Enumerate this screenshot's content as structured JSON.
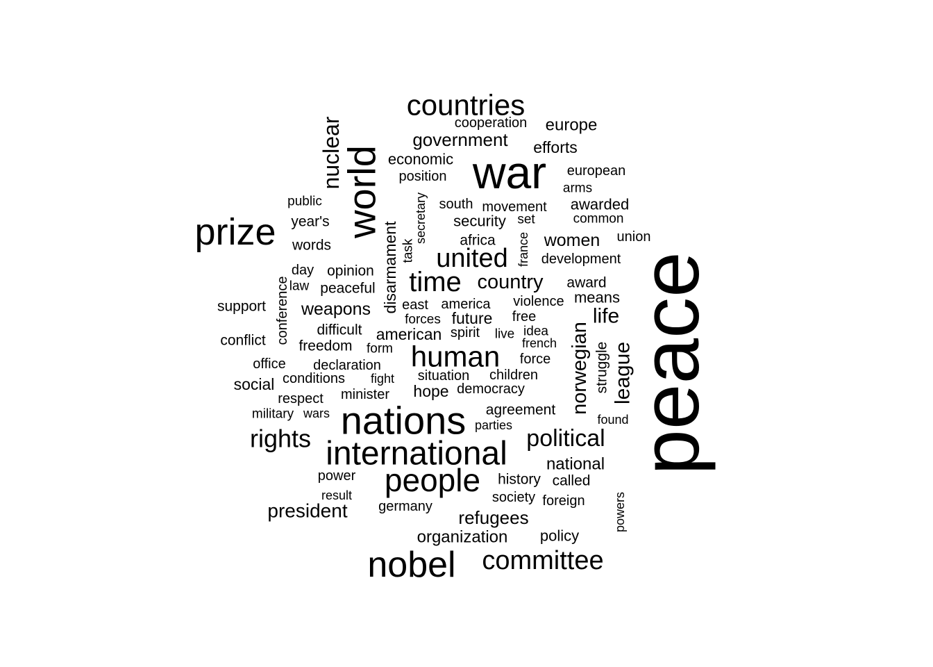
{
  "words": [
    {
      "text": "peace",
      "weight": 100,
      "rotated": true
    },
    {
      "text": "war",
      "weight": 56
    },
    {
      "text": "nations",
      "weight": 52
    },
    {
      "text": "world",
      "weight": 50,
      "rotated": true
    },
    {
      "text": "prize",
      "weight": 48
    },
    {
      "text": "international",
      "weight": 44
    },
    {
      "text": "people",
      "weight": 40
    },
    {
      "text": "nobel",
      "weight": 40
    },
    {
      "text": "countries",
      "weight": 34
    },
    {
      "text": "human",
      "weight": 34
    },
    {
      "text": "committee",
      "weight": 32
    },
    {
      "text": "time",
      "weight": 32
    },
    {
      "text": "united",
      "weight": 30
    },
    {
      "text": "rights",
      "weight": 30
    },
    {
      "text": "political",
      "weight": 28
    },
    {
      "text": "nuclear",
      "weight": 26,
      "rotated": true
    },
    {
      "text": "country",
      "weight": 25
    },
    {
      "text": "president",
      "weight": 24
    },
    {
      "text": "refugees",
      "weight": 23
    },
    {
      "text": "government",
      "weight": 23
    },
    {
      "text": "league",
      "weight": 24,
      "rotated": true
    },
    {
      "text": "norwegian",
      "weight": 24,
      "rotated": true
    },
    {
      "text": "life",
      "weight": 25
    },
    {
      "text": "disarmament",
      "weight": 20,
      "rotated": true
    },
    {
      "text": "women",
      "weight": 21
    },
    {
      "text": "weapons",
      "weight": 21
    },
    {
      "text": "national",
      "weight": 20
    },
    {
      "text": "organization",
      "weight": 20
    },
    {
      "text": "europe",
      "weight": 20
    },
    {
      "text": "american",
      "weight": 20
    },
    {
      "text": "economic",
      "weight": 19
    },
    {
      "text": "future",
      "weight": 19
    },
    {
      "text": "hope",
      "weight": 19
    },
    {
      "text": "social",
      "weight": 19
    },
    {
      "text": "efforts",
      "weight": 19
    },
    {
      "text": "security",
      "weight": 18
    },
    {
      "text": "awarded",
      "weight": 18
    },
    {
      "text": "means",
      "weight": 18
    },
    {
      "text": "policy",
      "weight": 18
    },
    {
      "text": "history",
      "weight": 17
    },
    {
      "text": "agreement",
      "weight": 17
    },
    {
      "text": "award",
      "weight": 17
    },
    {
      "text": "conflict",
      "weight": 17
    },
    {
      "text": "freedom",
      "weight": 17
    },
    {
      "text": "struggle",
      "weight": 17,
      "rotated": true
    },
    {
      "text": "words",
      "weight": 16
    },
    {
      "text": "africa",
      "weight": 16
    },
    {
      "text": "year's",
      "weight": 16
    },
    {
      "text": "peaceful",
      "weight": 16
    },
    {
      "text": "called",
      "weight": 16
    },
    {
      "text": "opinion",
      "weight": 16
    },
    {
      "text": "support",
      "weight": 16
    },
    {
      "text": "difficult",
      "weight": 16
    },
    {
      "text": "violence",
      "weight": 15
    },
    {
      "text": "position",
      "weight": 15
    },
    {
      "text": "south",
      "weight": 15
    },
    {
      "text": "development",
      "weight": 15
    },
    {
      "text": "america",
      "weight": 15
    },
    {
      "text": "east",
      "weight": 15
    },
    {
      "text": "union",
      "weight": 15
    },
    {
      "text": "european",
      "weight": 15
    },
    {
      "text": "cooperation",
      "weight": 15
    },
    {
      "text": "movement",
      "weight": 15
    },
    {
      "text": "office",
      "weight": 15
    },
    {
      "text": "spirit",
      "weight": 15
    },
    {
      "text": "situation",
      "weight": 15
    },
    {
      "text": "democracy",
      "weight": 15
    },
    {
      "text": "children",
      "weight": 15
    },
    {
      "text": "force",
      "weight": 15
    },
    {
      "text": "declaration",
      "weight": 15
    },
    {
      "text": "conditions",
      "weight": 15
    },
    {
      "text": "minister",
      "weight": 15
    },
    {
      "text": "respect",
      "weight": 15
    },
    {
      "text": "power",
      "weight": 15
    },
    {
      "text": "germany",
      "weight": 15
    },
    {
      "text": "society",
      "weight": 15
    },
    {
      "text": "foreign",
      "weight": 15
    },
    {
      "text": "day",
      "weight": 15
    },
    {
      "text": "free",
      "weight": 15
    },
    {
      "text": "conference",
      "weight": 15,
      "rotated": true
    },
    {
      "text": "arms",
      "weight": 14
    },
    {
      "text": "form",
      "weight": 14
    },
    {
      "text": "live",
      "weight": 14
    },
    {
      "text": "common",
      "weight": 14
    },
    {
      "text": "public",
      "weight": 14
    },
    {
      "text": "set",
      "weight": 14
    },
    {
      "text": "task",
      "weight": 14,
      "rotated": true
    },
    {
      "text": "secretary",
      "weight": 13,
      "rotated": true
    },
    {
      "text": "france",
      "weight": 13,
      "rotated": true
    },
    {
      "text": "law",
      "weight": 14
    },
    {
      "text": "idea",
      "weight": 14
    },
    {
      "text": "forces",
      "weight": 14
    },
    {
      "text": "french",
      "weight": 13
    },
    {
      "text": "fight",
      "weight": 13
    },
    {
      "text": "military",
      "weight": 14
    },
    {
      "text": "wars",
      "weight": 13
    },
    {
      "text": "parties",
      "weight": 13
    },
    {
      "text": "found",
      "weight": 13
    },
    {
      "text": "result",
      "weight": 13
    },
    {
      "text": "powers",
      "weight": 13,
      "rotated": true
    }
  ]
}
